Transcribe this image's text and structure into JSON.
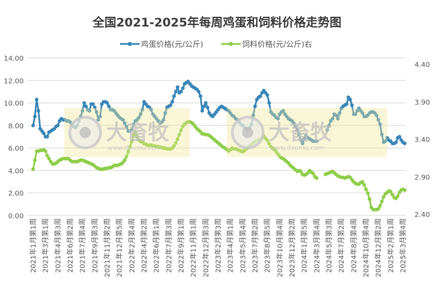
{
  "chart_data": {
    "type": "line",
    "title": "全国2021-2025年每周鸡蛋和饲料价格走势图",
    "tick_labels": [
      "2021年1月第1周",
      "2021年3月第1周",
      "2021年4月第3周",
      "2021年6月第2周",
      "2021年7月第4周",
      "2021年9月第3周",
      "2021年11月第2周",
      "2021年12月第5周",
      "2022年2月第4周",
      "2022年4月第2周",
      "2022年6月第1周",
      "2022年7月第3周",
      "2022年9月第1周",
      "2022年11月第1周",
      "2022年12月第3周",
      "2023年2月第3周",
      "2023年4月第1周",
      "2023年5月第4周",
      "2023年7月第2周",
      "2023年8月第5周",
      "2023年10月第4周",
      "2023年12月第2周",
      "2024年1月第5周",
      "2024年3月第4周",
      "2024年5月第3周",
      "2024年7月第2周",
      "2024年8月第4周",
      "2024年10月第4周",
      "2024年12月第2周",
      "2025年2月第1周",
      "2025年3月第4周"
    ],
    "tick_every_weeks": 7,
    "y_left": {
      "range": [
        0,
        14
      ],
      "ticks": [
        "0.00",
        "2.00",
        "4.00",
        "6.00",
        "8.00",
        "10.00",
        "12.00",
        "14.00"
      ]
    },
    "y_right": {
      "range": [
        2.4,
        4.4
      ],
      "ticks": [
        "2.40",
        "2.90",
        "3.40",
        "3.90",
        "4.40"
      ]
    },
    "grid": true,
    "legend_position": "top",
    "series": [
      {
        "name": "鸡蛋价格(元/公斤)",
        "axis": "left",
        "color": "#3a87b8",
        "values": [
          8.0,
          8.8,
          10.3,
          9.3,
          7.7,
          7.5,
          7.3,
          7.0,
          7.0,
          7.4,
          7.5,
          7.6,
          7.7,
          7.9,
          8.0,
          8.4,
          8.6,
          8.5,
          8.5,
          8.4,
          8.4,
          8.3,
          8.1,
          7.9,
          7.8,
          8.0,
          8.4,
          8.8,
          9.3,
          10.0,
          9.7,
          9.4,
          9.3,
          9.9,
          9.9,
          9.6,
          9.2,
          8.5,
          8.8,
          9.9,
          10.1,
          10.1,
          10.0,
          9.7,
          9.4,
          9.4,
          9.3,
          9.1,
          8.9,
          8.7,
          8.6,
          8.5,
          8.2,
          7.9,
          7.5,
          7.5,
          7.6,
          8.1,
          8.4,
          8.5,
          8.7,
          9.0,
          9.4,
          10.1,
          9.9,
          9.7,
          9.6,
          9.4,
          9.0,
          8.8,
          8.6,
          8.4,
          8.2,
          8.3,
          8.5,
          9.1,
          9.6,
          9.7,
          9.8,
          10.1,
          10.6,
          11.0,
          11.4,
          10.9,
          11.0,
          11.3,
          11.7,
          11.8,
          11.9,
          11.7,
          11.5,
          11.4,
          11.3,
          11.2,
          11.0,
          10.6,
          9.3,
          9.7,
          10.0,
          9.6,
          9.1,
          8.9,
          8.8,
          9.0,
          9.2,
          9.4,
          9.6,
          9.7,
          9.6,
          9.5,
          9.4,
          9.3,
          9.1,
          8.9,
          8.8,
          8.6,
          8.5,
          8.3,
          8.1,
          8.0,
          7.8,
          7.7,
          7.6,
          7.8,
          8.1,
          8.9,
          9.7,
          10.3,
          10.5,
          10.6,
          10.9,
          11.1,
          10.9,
          10.7,
          10.0,
          9.2,
          9.0,
          8.9,
          8.7,
          8.6,
          9.0,
          9.2,
          9.3,
          9.0,
          8.8,
          8.6,
          8.5,
          8.4,
          8.2,
          7.9,
          7.6,
          7.2,
          6.7,
          6.4,
          6.8,
          7.1,
          6.9,
          6.8,
          6.7,
          6.6,
          6.6,
          6.6,
          null,
          null,
          null,
          null,
          null,
          7.6,
          8.0,
          8.4,
          8.6,
          9.0,
          8.9,
          8.6,
          9.1,
          9.5,
          9.7,
          9.8,
          9.9,
          10.5,
          10.3,
          9.8,
          9.0,
          9.0,
          9.3,
          9.5,
          9.3,
          9.1,
          8.8,
          8.8,
          8.9,
          9.1,
          9.2,
          9.2,
          9.1,
          8.9,
          8.5,
          8.1,
          7.2,
          6.5,
          6.6,
          6.9,
          6.7,
          6.6,
          6.4,
          6.4,
          6.5,
          6.9,
          7.0,
          6.7,
          6.5,
          6.4
        ]
      },
      {
        "name": "饲料价格(元/公斤)右",
        "axis": "right",
        "color": "#8fce4a",
        "values": [
          3.0,
          3.12,
          3.24,
          3.24,
          3.25,
          3.25,
          3.26,
          3.24,
          3.18,
          3.14,
          3.1,
          3.07,
          3.07,
          3.08,
          3.1,
          3.12,
          3.13,
          3.14,
          3.14,
          3.14,
          3.14,
          3.12,
          3.1,
          3.1,
          3.1,
          3.1,
          3.11,
          3.12,
          3.12,
          3.11,
          3.1,
          3.09,
          3.08,
          3.07,
          3.06,
          3.04,
          3.02,
          3.01,
          3.0,
          3.0,
          3.0,
          3.01,
          3.01,
          3.02,
          3.02,
          3.03,
          3.05,
          3.05,
          3.05,
          3.06,
          3.07,
          3.09,
          3.12,
          3.17,
          3.23,
          3.3,
          3.37,
          3.45,
          3.49,
          3.43,
          3.39,
          3.37,
          3.36,
          3.34,
          3.33,
          3.32,
          3.32,
          3.32,
          3.31,
          3.31,
          3.3,
          3.3,
          3.29,
          3.29,
          3.28,
          3.28,
          3.27,
          3.27,
          3.27,
          3.28,
          3.31,
          3.35,
          3.4,
          3.46,
          3.52,
          3.57,
          3.6,
          3.62,
          3.63,
          3.63,
          3.62,
          3.6,
          3.57,
          3.54,
          3.52,
          3.5,
          3.47,
          3.47,
          3.46,
          3.46,
          3.45,
          3.43,
          3.41,
          3.39,
          3.37,
          3.35,
          3.33,
          3.31,
          3.29,
          3.28,
          3.26,
          3.24,
          3.26,
          3.28,
          3.27,
          3.27,
          3.26,
          3.25,
          3.24,
          3.23,
          3.25,
          3.27,
          3.29,
          3.31,
          3.33,
          3.35,
          3.37,
          3.38,
          3.39,
          3.4,
          3.42,
          3.44,
          3.41,
          3.38,
          3.34,
          3.3,
          3.28,
          3.26,
          3.23,
          3.2,
          3.17,
          3.15,
          3.14,
          3.12,
          3.1,
          3.08,
          3.05,
          3.03,
          3.01,
          2.99,
          2.97,
          2.98,
          2.97,
          2.93,
          2.92,
          2.93,
          2.95,
          2.98,
          2.96,
          2.94,
          2.9,
          2.88,
          null,
          null,
          null,
          null,
          2.93,
          2.94,
          2.95,
          2.96,
          2.97,
          2.95,
          2.93,
          2.91,
          2.9,
          2.89,
          2.89,
          2.88,
          2.89,
          2.9,
          2.89,
          2.86,
          2.83,
          2.81,
          2.8,
          2.8,
          2.82,
          2.83,
          2.79,
          2.73,
          2.68,
          2.6,
          2.49,
          2.46,
          2.46,
          2.46,
          2.47,
          2.51,
          2.57,
          2.63,
          2.67,
          2.69,
          2.71,
          2.7,
          2.66,
          2.62,
          2.61,
          2.64,
          2.69,
          2.72,
          2.73,
          2.72
        ]
      }
    ]
  },
  "watermark": {
    "brand": "大畜牧",
    "url": "www.dxumu.com"
  }
}
